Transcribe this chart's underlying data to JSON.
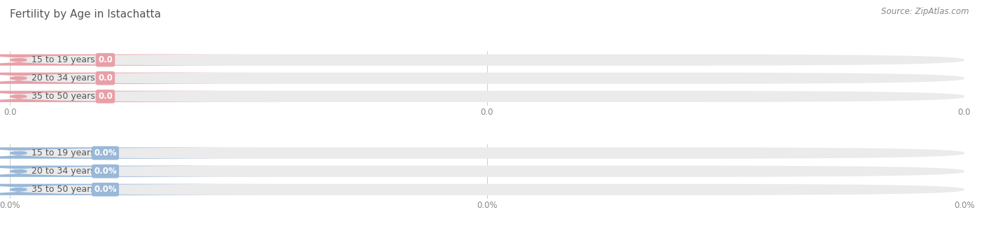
{
  "title": "Fertility by Age in Istachatta",
  "source": "Source: ZipAtlas.com",
  "bar_bg_color": "#ebebeb",
  "top_section": {
    "categories": [
      "15 to 19 years",
      "20 to 34 years",
      "35 to 50 years"
    ],
    "values": [
      0.0,
      0.0,
      0.0
    ],
    "bar_color": "#e8a0a8",
    "value_label": "0.0",
    "tick_labels": [
      "0.0",
      "0.0",
      "0.0"
    ]
  },
  "bottom_section": {
    "categories": [
      "15 to 19 years",
      "20 to 34 years",
      "35 to 50 years"
    ],
    "values": [
      0.0,
      0.0,
      0.0
    ],
    "bar_color": "#9ab8d8",
    "value_label": "0.0%",
    "tick_labels": [
      "0.0%",
      "0.0%",
      "0.0%"
    ]
  },
  "title_fontsize": 11,
  "source_fontsize": 8.5,
  "label_fontsize": 9,
  "val_fontsize": 8.5,
  "tick_fontsize": 8.5,
  "fig_width": 14.06,
  "fig_height": 3.3,
  "dpi": 100
}
